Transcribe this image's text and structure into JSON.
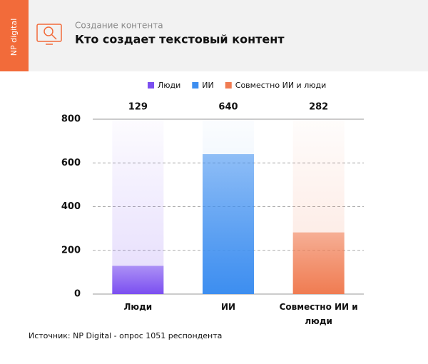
{
  "header": {
    "brand": "NP digital",
    "subtitle": "Создание контента"
  },
  "chart_data": {
    "type": "bar",
    "title": "Кто создает текстовый контент",
    "categories": [
      "Люди",
      "ИИ",
      "Совместно ИИ и люди"
    ],
    "values": [
      129,
      640,
      282
    ],
    "colors": [
      "#7b4ff0",
      "#3d8ef0",
      "#f07c52"
    ],
    "ylim": [
      0,
      800
    ],
    "yticks": [
      0,
      200,
      400,
      600,
      800
    ],
    "grid": true,
    "legend": "top"
  },
  "footer": {
    "source": "Источник: NP Digital - опрос 1051 респондента"
  }
}
